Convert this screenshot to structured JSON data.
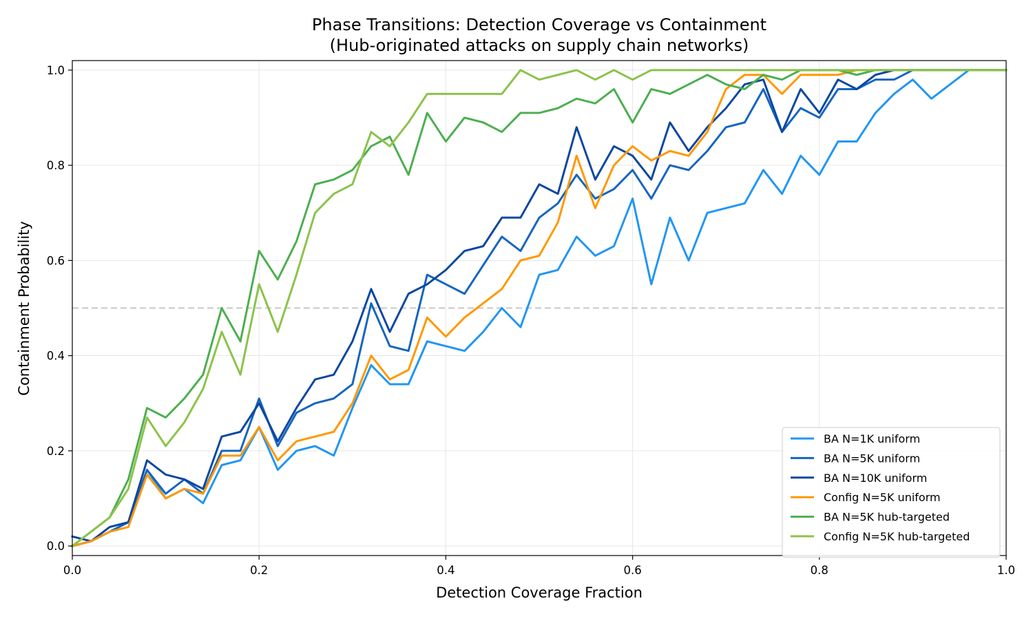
{
  "chart_data": {
    "type": "line",
    "title": "Phase Transitions: Detection Coverage vs Containment",
    "subtitle": "(Hub-originated attacks on supply chain networks)",
    "xlabel": "Detection Coverage Fraction",
    "ylabel": "Containment Probability",
    "xlim": [
      0.0,
      1.0
    ],
    "ylim": [
      -0.02,
      1.02
    ],
    "x_ticks": [
      0.0,
      0.2,
      0.4,
      0.6,
      0.8,
      1.0
    ],
    "x_tick_labels": [
      "0.0",
      "0.2",
      "0.4",
      "0.6",
      "0.8",
      "1.0"
    ],
    "y_ticks": [
      0.0,
      0.2,
      0.4,
      0.6,
      0.8,
      1.0
    ],
    "y_tick_labels": [
      "0.0",
      "0.2",
      "0.4",
      "0.6",
      "0.8",
      "1.0"
    ],
    "grid": true,
    "legend_position": "lower-right",
    "reference_line": {
      "y": 0.5,
      "style": "dashed",
      "color": "#cccccc"
    },
    "x": [
      0.0,
      0.02,
      0.04,
      0.06,
      0.08,
      0.1,
      0.12,
      0.14,
      0.16,
      0.18,
      0.2,
      0.22,
      0.24,
      0.26,
      0.28,
      0.3,
      0.32,
      0.34,
      0.36,
      0.38,
      0.4,
      0.42,
      0.44,
      0.46,
      0.48,
      0.5,
      0.52,
      0.54,
      0.56,
      0.58,
      0.6,
      0.62,
      0.64,
      0.66,
      0.68,
      0.7,
      0.72,
      0.74,
      0.76,
      0.78,
      0.8,
      0.82,
      0.84,
      0.86,
      0.88,
      0.9,
      0.92,
      0.94,
      0.96,
      0.98,
      1.0
    ],
    "series": [
      {
        "name": "BA N=1K uniform",
        "color": "#2196f3",
        "values": [
          0.0,
          0.01,
          0.03,
          0.05,
          0.16,
          0.1,
          0.12,
          0.09,
          0.17,
          0.18,
          0.25,
          0.16,
          0.2,
          0.21,
          0.19,
          0.29,
          0.38,
          0.34,
          0.34,
          0.43,
          0.42,
          0.41,
          0.45,
          0.5,
          0.46,
          0.57,
          0.58,
          0.65,
          0.61,
          0.63,
          0.73,
          0.55,
          0.69,
          0.6,
          0.7,
          0.71,
          0.72,
          0.79,
          0.74,
          0.82,
          0.78,
          0.85,
          0.85,
          0.91,
          0.95,
          0.98,
          0.94,
          0.97,
          1.0,
          1.0,
          1.0
        ]
      },
      {
        "name": "BA N=5K uniform",
        "color": "#1565c0",
        "values": [
          0.0,
          0.01,
          0.03,
          0.05,
          0.16,
          0.11,
          0.14,
          0.11,
          0.2,
          0.2,
          0.31,
          0.21,
          0.28,
          0.3,
          0.31,
          0.34,
          0.51,
          0.42,
          0.41,
          0.57,
          0.55,
          0.53,
          0.59,
          0.65,
          0.62,
          0.69,
          0.72,
          0.78,
          0.73,
          0.75,
          0.79,
          0.73,
          0.8,
          0.79,
          0.83,
          0.88,
          0.89,
          0.96,
          0.87,
          0.92,
          0.9,
          0.96,
          0.96,
          0.98,
          0.98,
          1.0,
          1.0,
          1.0,
          1.0,
          1.0,
          1.0
        ]
      },
      {
        "name": "BA N=10K uniform",
        "color": "#0d47a1",
        "values": [
          0.02,
          0.01,
          0.04,
          0.05,
          0.18,
          0.15,
          0.14,
          0.12,
          0.23,
          0.24,
          0.3,
          0.22,
          0.29,
          0.35,
          0.36,
          0.43,
          0.54,
          0.45,
          0.53,
          0.55,
          0.58,
          0.62,
          0.63,
          0.69,
          0.69,
          0.76,
          0.74,
          0.88,
          0.77,
          0.84,
          0.82,
          0.77,
          0.89,
          0.83,
          0.88,
          0.92,
          0.97,
          0.98,
          0.87,
          0.96,
          0.91,
          0.98,
          0.96,
          0.99,
          1.0,
          1.0,
          1.0,
          1.0,
          1.0,
          1.0,
          1.0
        ]
      },
      {
        "name": "Config N=5K uniform",
        "color": "#ff9800",
        "values": [
          0.0,
          0.01,
          0.03,
          0.04,
          0.15,
          0.1,
          0.12,
          0.11,
          0.19,
          0.19,
          0.25,
          0.18,
          0.22,
          0.23,
          0.24,
          0.3,
          0.4,
          0.35,
          0.37,
          0.48,
          0.44,
          0.48,
          0.51,
          0.54,
          0.6,
          0.61,
          0.68,
          0.82,
          0.71,
          0.8,
          0.84,
          0.81,
          0.83,
          0.82,
          0.87,
          0.96,
          0.99,
          0.99,
          0.95,
          0.99,
          0.99,
          0.99,
          1.0,
          1.0,
          1.0,
          1.0,
          1.0,
          1.0,
          1.0,
          1.0,
          1.0
        ]
      },
      {
        "name": "BA N=5K hub-targeted",
        "color": "#4caf50",
        "values": [
          0.0,
          0.03,
          0.06,
          0.14,
          0.29,
          0.27,
          0.31,
          0.36,
          0.5,
          0.43,
          0.62,
          0.56,
          0.64,
          0.76,
          0.77,
          0.79,
          0.84,
          0.86,
          0.78,
          0.91,
          0.85,
          0.9,
          0.89,
          0.87,
          0.91,
          0.91,
          0.92,
          0.94,
          0.93,
          0.96,
          0.89,
          0.96,
          0.95,
          0.97,
          0.99,
          0.97,
          0.96,
          0.99,
          0.98,
          1.0,
          1.0,
          1.0,
          0.99,
          1.0,
          1.0,
          1.0,
          1.0,
          1.0,
          1.0,
          1.0,
          1.0
        ]
      },
      {
        "name": "Config N=5K hub-targeted",
        "color": "#8bc34a",
        "values": [
          0.0,
          0.03,
          0.06,
          0.12,
          0.27,
          0.21,
          0.26,
          0.33,
          0.45,
          0.36,
          0.55,
          0.45,
          0.57,
          0.7,
          0.74,
          0.76,
          0.87,
          0.84,
          0.89,
          0.95,
          0.95,
          0.95,
          0.95,
          0.95,
          1.0,
          0.98,
          0.99,
          1.0,
          0.98,
          1.0,
          0.98,
          1.0,
          1.0,
          1.0,
          1.0,
          1.0,
          1.0,
          1.0,
          1.0,
          1.0,
          1.0,
          1.0,
          1.0,
          1.0,
          1.0,
          1.0,
          1.0,
          1.0,
          1.0,
          1.0,
          1.0
        ]
      }
    ]
  }
}
